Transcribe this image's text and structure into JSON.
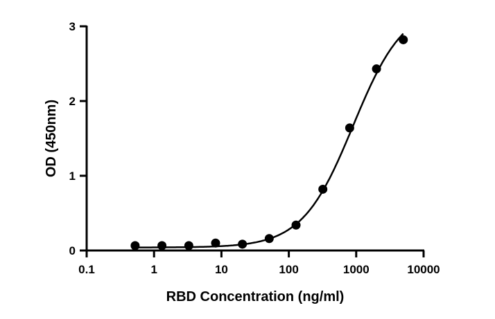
{
  "chart_data": {
    "type": "scatter",
    "title": "",
    "xlabel": "RBD Concentration (ng/ml)",
    "ylabel": "OD (450nm)",
    "xscale": "log",
    "xlim": [
      0.1,
      10000
    ],
    "ylim": [
      0,
      3
    ],
    "xticks": [
      0.1,
      1,
      10,
      100,
      1000,
      10000
    ],
    "xtick_labels": [
      "0.1",
      "1",
      "10",
      "100",
      "1000",
      "10000"
    ],
    "yticks": [
      0,
      1,
      2,
      3
    ],
    "ytick_labels": [
      "0",
      "1",
      "2",
      "3"
    ],
    "grid": false,
    "series": [
      {
        "name": "data",
        "x": [
          0.524,
          1.31,
          3.28,
          8.19,
          20.48,
          51.2,
          128,
          320,
          800,
          2000,
          5000
        ],
        "y": [
          0.065,
          0.065,
          0.065,
          0.1,
          0.085,
          0.16,
          0.34,
          0.82,
          1.64,
          2.43,
          2.82
        ]
      }
    ],
    "fit": {
      "model": "4PL",
      "bottom": 0.04,
      "top": 3.3,
      "ec50": 900,
      "hill": 1.15,
      "x_range": [
        0.524,
        5000
      ]
    }
  }
}
